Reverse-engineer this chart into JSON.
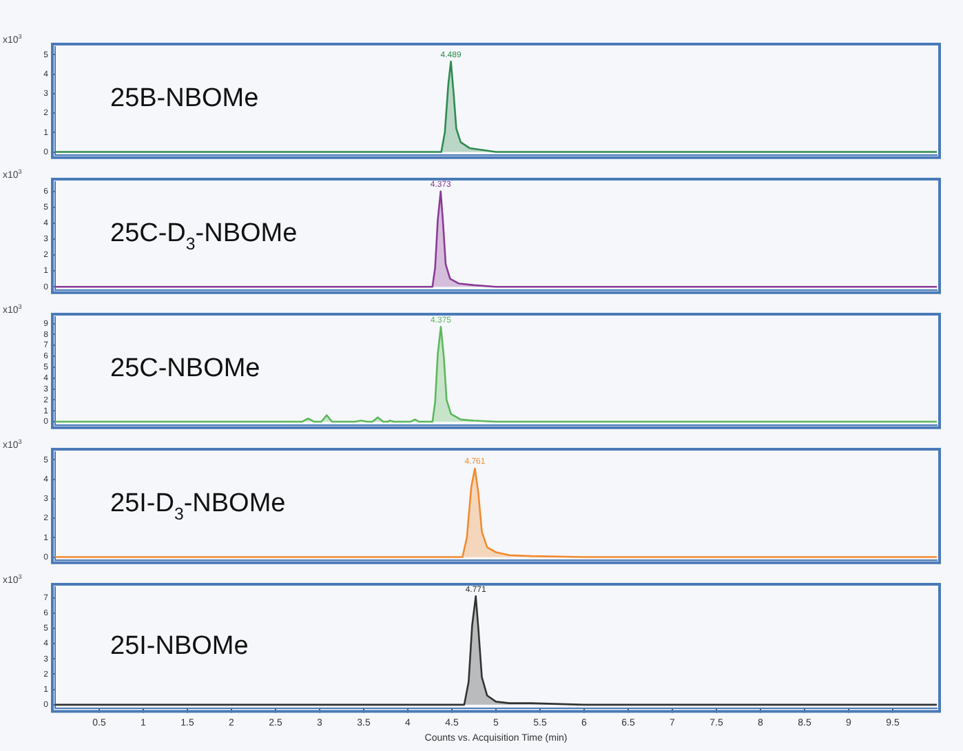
{
  "chart_data": [
    {
      "type": "area",
      "title": "25B-NBOMe",
      "ylabel": "x10$^{3}$",
      "tick_labels": "y",
      "grid": false,
      "legend": false,
      "xlim": [
        0,
        10
      ],
      "ylim": [
        -0.15,
        5.4
      ],
      "yticks": [
        0,
        1,
        2,
        3,
        4,
        5
      ],
      "series": [
        {
          "color": "#2e8b4f",
          "x": [
            0,
            1,
            2,
            3,
            4,
            4.38,
            4.42,
            4.46,
            4.489,
            4.52,
            4.55,
            4.6,
            4.7,
            4.85,
            5.0,
            6,
            7,
            8,
            9,
            10
          ],
          "values": [
            0,
            0,
            0,
            0,
            0,
            0,
            1.0,
            3.5,
            4.65,
            3.0,
            1.2,
            0.5,
            0.2,
            0.1,
            0,
            0,
            0,
            0,
            0,
            0
          ]
        }
      ],
      "annotations": [
        {
          "text": "4.489",
          "x": 4.489,
          "y": 4.65
        }
      ]
    },
    {
      "type": "area",
      "title": "25C-D$_{3}$-NBOMe",
      "ylabel": "x10$^{3}$",
      "tick_labels": "y",
      "grid": false,
      "legend": false,
      "xlim": [
        0,
        10
      ],
      "ylim": [
        -0.2,
        6.6
      ],
      "yticks": [
        0,
        1,
        2,
        3,
        4,
        5,
        6
      ],
      "series": [
        {
          "color": "#8b3a98",
          "x": [
            0,
            1,
            2,
            3,
            4,
            4.28,
            4.31,
            4.34,
            4.373,
            4.4,
            4.43,
            4.48,
            4.58,
            4.75,
            5.0,
            6,
            7,
            8,
            9,
            10
          ],
          "values": [
            0,
            0,
            0,
            0,
            0,
            0,
            1.2,
            4.2,
            6.0,
            4.0,
            1.4,
            0.5,
            0.2,
            0.1,
            0,
            0,
            0,
            0,
            0,
            0
          ]
        }
      ],
      "annotations": [
        {
          "text": "4.373",
          "x": 4.373,
          "y": 6.0
        }
      ]
    },
    {
      "type": "area",
      "title": "25C-NBOMe",
      "ylabel": "x10$^{3}$",
      "tick_labels": "y",
      "grid": false,
      "legend": false,
      "xlim": [
        0,
        10
      ],
      "ylim": [
        -0.3,
        9.6
      ],
      "yticks": [
        0,
        1,
        2,
        3,
        4,
        5,
        6,
        7,
        8,
        9
      ],
      "series": [
        {
          "color": "#5cb85c",
          "x": [
            0,
            1,
            2,
            2.8,
            2.87,
            2.94,
            3.02,
            3.08,
            3.14,
            3.4,
            3.47,
            3.54,
            3.6,
            3.66,
            3.72,
            3.77,
            3.8,
            3.84,
            4.03,
            4.08,
            4.13,
            4.28,
            4.31,
            4.34,
            4.375,
            4.41,
            4.44,
            4.49,
            4.6,
            4.75,
            5.0,
            6,
            7,
            8,
            9,
            10
          ],
          "values": [
            0,
            0,
            0,
            0,
            0.3,
            0,
            0,
            0.6,
            0,
            0,
            0.1,
            0,
            0,
            0.4,
            0,
            0,
            0.1,
            0,
            0,
            0.2,
            0,
            0,
            1.8,
            6.2,
            8.7,
            5.8,
            2.0,
            0.7,
            0.2,
            0.1,
            0,
            0,
            0,
            0,
            0,
            0
          ]
        }
      ],
      "annotations": [
        {
          "text": "4.375",
          "x": 4.375,
          "y": 8.7
        }
      ]
    },
    {
      "type": "area",
      "title": "25I-D$_{3}$-NBOMe",
      "ylabel": "x10$^{3}$",
      "tick_labels": "y",
      "grid": false,
      "legend": false,
      "xlim": [
        0,
        10
      ],
      "ylim": [
        -0.15,
        5.4
      ],
      "yticks": [
        0,
        1,
        2,
        3,
        4,
        5
      ],
      "series": [
        {
          "color": "#f28a2e",
          "x": [
            0,
            1,
            2,
            3,
            4,
            4.62,
            4.67,
            4.72,
            4.761,
            4.8,
            4.84,
            4.9,
            5.0,
            5.15,
            5.4,
            6,
            7,
            8,
            9,
            10
          ],
          "values": [
            0,
            0,
            0,
            0,
            0,
            0,
            1.0,
            3.6,
            4.55,
            3.3,
            1.3,
            0.5,
            0.25,
            0.1,
            0.05,
            0,
            0,
            0,
            0,
            0
          ]
        }
      ],
      "annotations": [
        {
          "text": "4.761",
          "x": 4.761,
          "y": 4.55
        }
      ]
    },
    {
      "type": "area",
      "title": "25I-NBOMe",
      "xlabel": "Counts vs. Acquisition Time (min)",
      "ylabel": "x10$^{3}$",
      "grid": false,
      "legend": false,
      "xlim": [
        0,
        10
      ],
      "xticks": [
        0.5,
        1,
        1.5,
        2,
        2.5,
        3,
        3.5,
        4,
        4.5,
        5,
        5.5,
        6,
        6.5,
        7,
        7.5,
        8,
        8.5,
        9,
        9.5
      ],
      "ylim": [
        -0.25,
        7.7
      ],
      "yticks": [
        0,
        1,
        2,
        3,
        4,
        5,
        6,
        7
      ],
      "series": [
        {
          "color": "#333333",
          "x": [
            0,
            1,
            2,
            3,
            4,
            4.64,
            4.69,
            4.73,
            4.771,
            4.8,
            4.84,
            4.9,
            5.0,
            5.15,
            5.4,
            6,
            7,
            8,
            9,
            10
          ],
          "values": [
            0,
            0,
            0,
            0,
            0,
            0,
            1.5,
            5.2,
            7.1,
            5.0,
            1.8,
            0.6,
            0.2,
            0.1,
            0.1,
            0,
            0,
            0,
            0,
            0
          ]
        }
      ],
      "annotations": [
        {
          "text": "4.771",
          "x": 4.771,
          "y": 7.1
        }
      ]
    }
  ]
}
